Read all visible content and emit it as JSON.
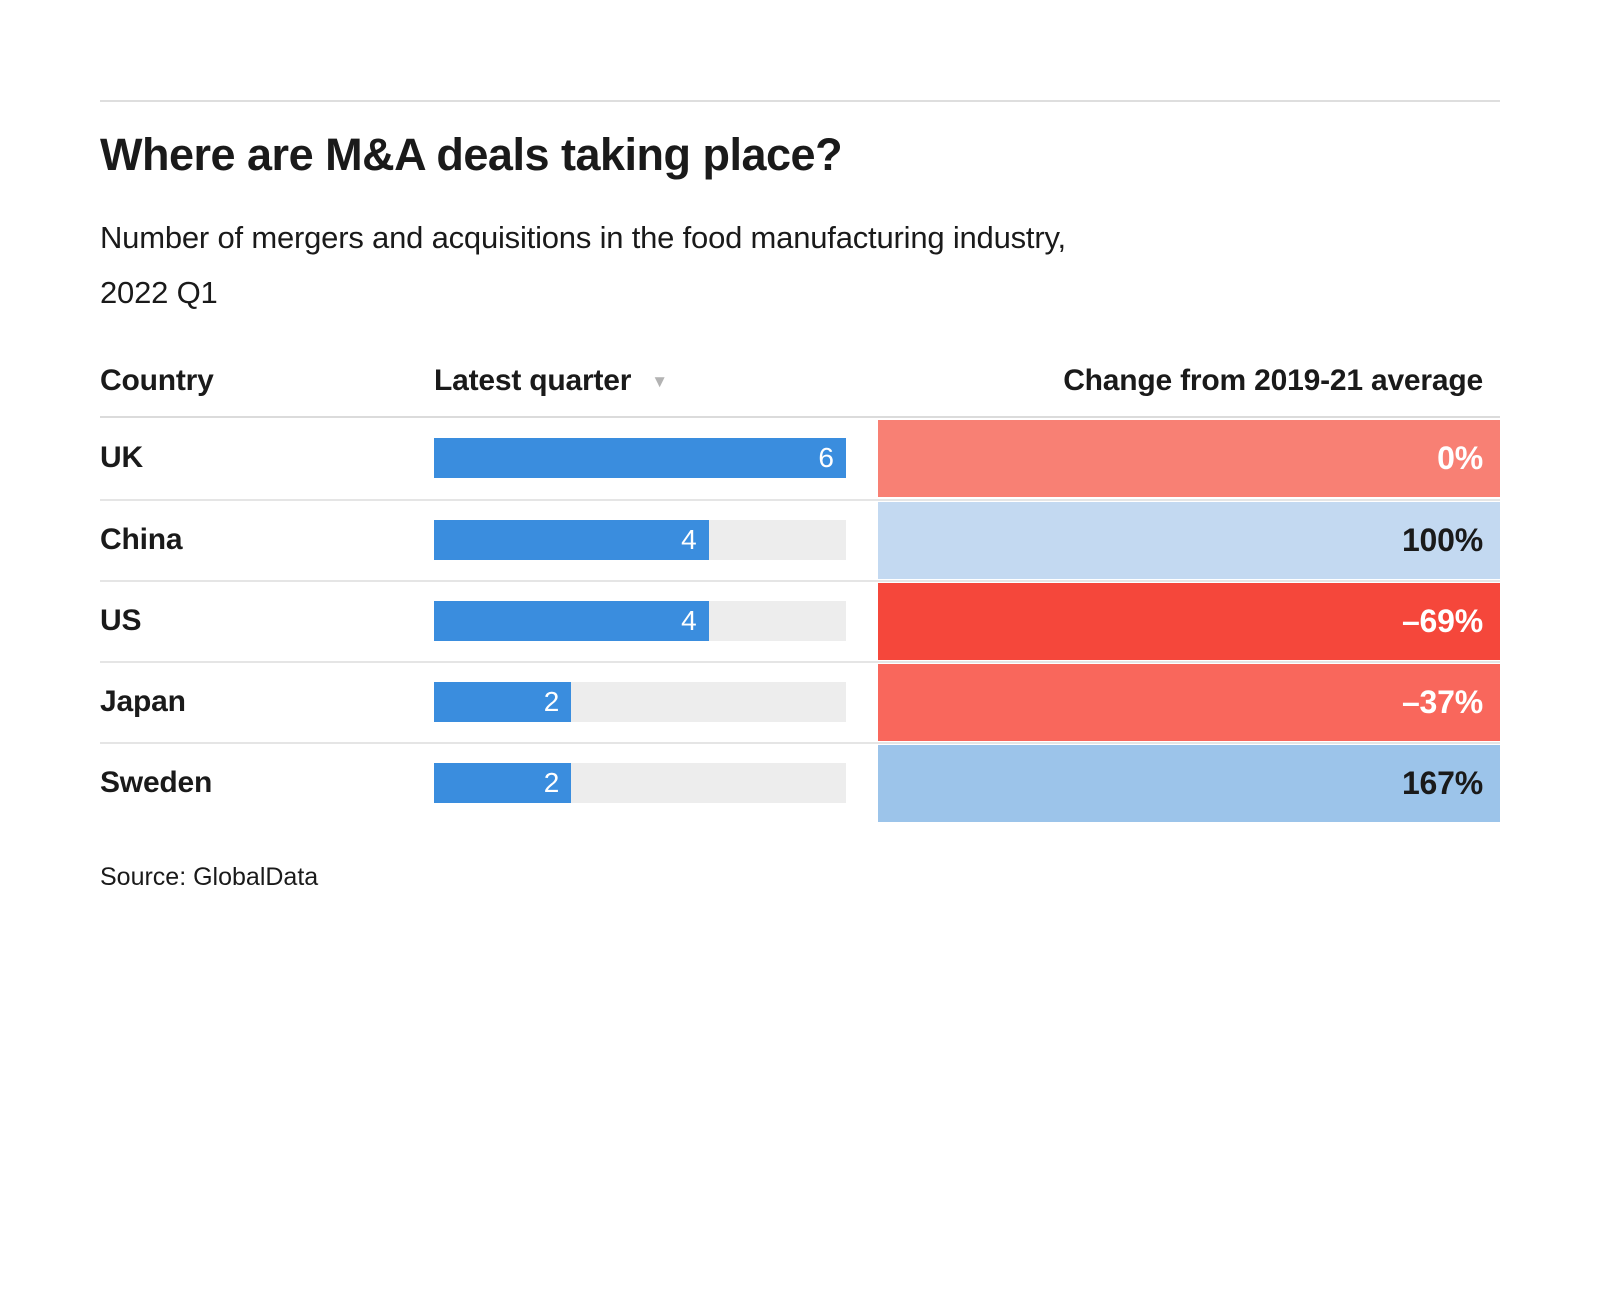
{
  "header": {
    "title": "Where are M&A deals taking place?",
    "subtitle_line1": "Number of mergers and acquisitions in the food manufacturing industry,",
    "subtitle_line2": "2022 Q1"
  },
  "table": {
    "col_country": "Country",
    "col_quarter": "Latest quarter",
    "col_change": "Change from 2019-21 average",
    "sort_icon": "▼"
  },
  "colors": {
    "bar_blue": "#3a8dde",
    "bar_track_gray": "#ededed",
    "red_strong": "#f5473b",
    "red_medium": "#f9675c",
    "red_light": "#f88074",
    "blue_light": "#c3d9f1",
    "blue_medium": "#9cc4ea"
  },
  "rows": [
    {
      "country": "UK",
      "value": "6",
      "bar_width": "100%",
      "change": "0%",
      "cell_color": "#f88074",
      "text_color": "#ffffff"
    },
    {
      "country": "China",
      "value": "4",
      "bar_width": "66.67%",
      "change": "100%",
      "cell_color": "#c3d9f1",
      "text_color": "#1a1a1a"
    },
    {
      "country": "US",
      "value": "4",
      "bar_width": "66.67%",
      "change": "–69%",
      "cell_color": "#f5473b",
      "text_color": "#ffffff"
    },
    {
      "country": "Japan",
      "value": "2",
      "bar_width": "33.33%",
      "change": "–37%",
      "cell_color": "#f9675c",
      "text_color": "#ffffff"
    },
    {
      "country": "Sweden",
      "value": "2",
      "bar_width": "33.33%",
      "change": "167%",
      "cell_color": "#9cc4ea",
      "text_color": "#1a1a1a"
    }
  ],
  "source": "Source: GlobalData",
  "chart_data": {
    "type": "bar",
    "orientation": "horizontal",
    "title": "Where are M&A deals taking place?",
    "subtitle": "Number of mergers and acquisitions in the food manufacturing industry, 2022 Q1",
    "categories": [
      "UK",
      "China",
      "US",
      "Japan",
      "Sweden"
    ],
    "series": [
      {
        "name": "Latest quarter",
        "values": [
          6,
          4,
          4,
          2,
          2
        ]
      },
      {
        "name": "Change from 2019-21 average (%)",
        "values": [
          0,
          100,
          -69,
          -37,
          167
        ]
      }
    ],
    "xlim": [
      0,
      6
    ],
    "sort": "Latest quarter, descending",
    "legend_position": "none",
    "grid": false,
    "source": "Source: GlobalData"
  }
}
